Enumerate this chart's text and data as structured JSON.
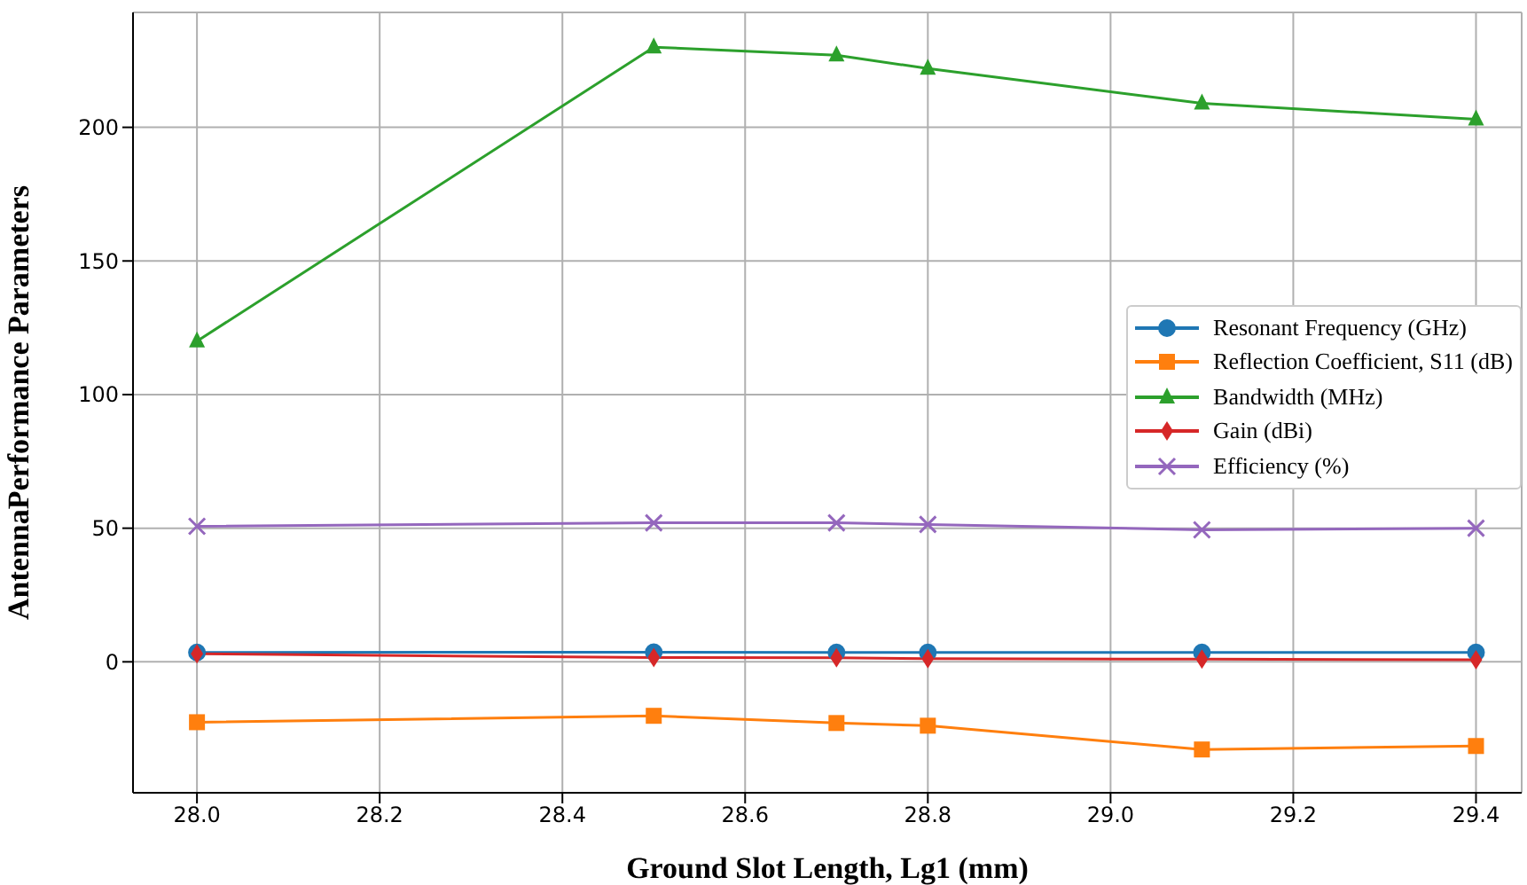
{
  "chart_data": {
    "type": "line",
    "xlabel": "Ground Slot Length, Lg1 (mm)",
    "ylabel": "AntennaPerformance Parameters",
    "x": [
      28.0,
      28.5,
      28.7,
      28.8,
      29.1,
      29.4
    ],
    "xlim": [
      27.93,
      29.45
    ],
    "xticks": [
      {
        "value": 28.0,
        "label": "28.0"
      },
      {
        "value": 28.2,
        "label": "28.2"
      },
      {
        "value": 28.4,
        "label": "28.4"
      },
      {
        "value": 28.6,
        "label": "28.6"
      },
      {
        "value": 28.8,
        "label": "28.8"
      },
      {
        "value": 29.0,
        "label": "29.0"
      },
      {
        "value": 29.2,
        "label": "29.2"
      },
      {
        "value": 29.4,
        "label": "29.4"
      }
    ],
    "ylim": [
      -49,
      243
    ],
    "yticks": [
      0,
      50,
      100,
      150,
      200
    ],
    "grid": true,
    "legend": "right",
    "series": [
      {
        "name": "Resonant Frequency (GHz)",
        "color": "#1f77b4",
        "marker": "circle",
        "values": [
          3.5,
          3.6,
          3.5,
          3.5,
          3.5,
          3.5
        ]
      },
      {
        "name": "Reflection Coefficient, S11 (dB)",
        "color": "#ff7f0e",
        "marker": "square",
        "values": [
          -22.6,
          -20.2,
          -22.9,
          -23.9,
          -32.8,
          -31.5
        ]
      },
      {
        "name": "Bandwidth (MHz)",
        "color": "#2ca02c",
        "marker": "triangle",
        "values": [
          120,
          230,
          227,
          222,
          209,
          203
        ]
      },
      {
        "name": "Gain (dBi)",
        "color": "#d62728",
        "marker": "diamond",
        "values": [
          3,
          1.6,
          1.5,
          1.2,
          1.0,
          0.8
        ]
      },
      {
        "name": "Efficiency (%)",
        "color": "#9467bd",
        "marker": "cross",
        "values": [
          50.7,
          52,
          52,
          51.4,
          49.4,
          50
        ]
      }
    ]
  }
}
